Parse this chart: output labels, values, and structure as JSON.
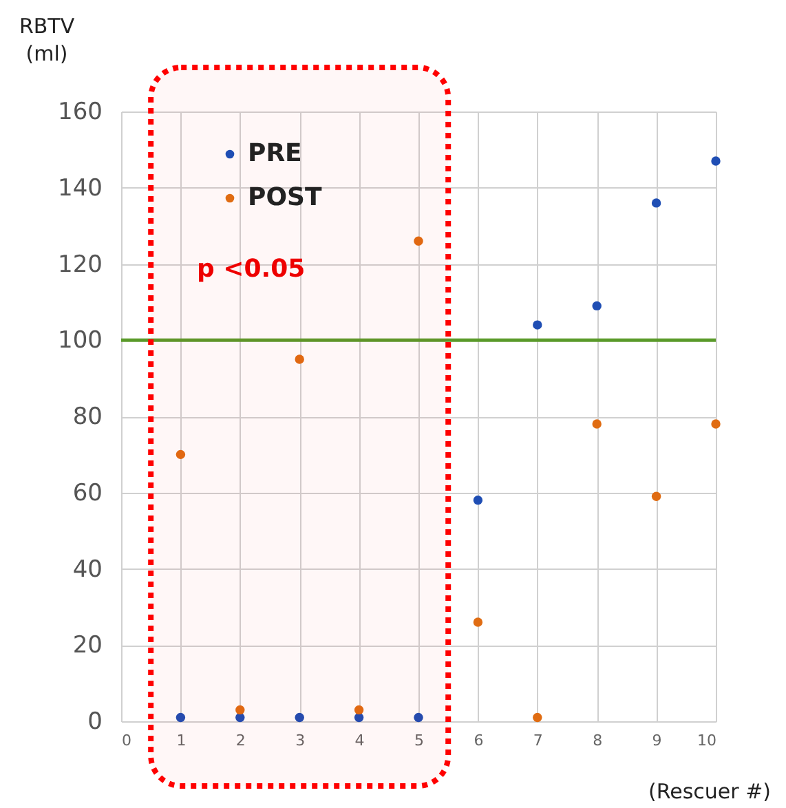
{
  "chart_data": {
    "type": "scatter",
    "xlabel": "(Rescuer #)",
    "ylabel": "RBTV (ml)",
    "x": [
      1,
      2,
      3,
      4,
      5,
      6,
      7,
      8,
      9,
      10
    ],
    "series": [
      {
        "name": "PRE",
        "color": "#1f4eb4",
        "values": [
          1,
          1,
          1,
          1,
          1,
          58,
          104,
          109,
          136,
          147
        ]
      },
      {
        "name": "POST",
        "color": "#e06c12",
        "values": [
          70,
          3,
          95,
          3,
          126,
          26,
          1,
          78,
          59,
          78
        ]
      }
    ],
    "xlim": [
      0,
      10
    ],
    "xticks": [
      0,
      1,
      2,
      3,
      4,
      5,
      6,
      7,
      8,
      9,
      10
    ],
    "ylim": [
      0,
      160
    ],
    "yticks": [
      0,
      20,
      40,
      60,
      80,
      100,
      120,
      140,
      160
    ],
    "ref_lines": [
      {
        "axis": "y",
        "value": 100,
        "label": null,
        "color": "#5a9a2a"
      }
    ],
    "bands": [
      {
        "axis": "x",
        "from": 0.5,
        "to": 5.5,
        "label": null,
        "color": "#ff0000"
      }
    ],
    "annotations": [
      "p <0.05"
    ],
    "grid": true,
    "legend": "top left",
    "marker": "circle"
  }
}
